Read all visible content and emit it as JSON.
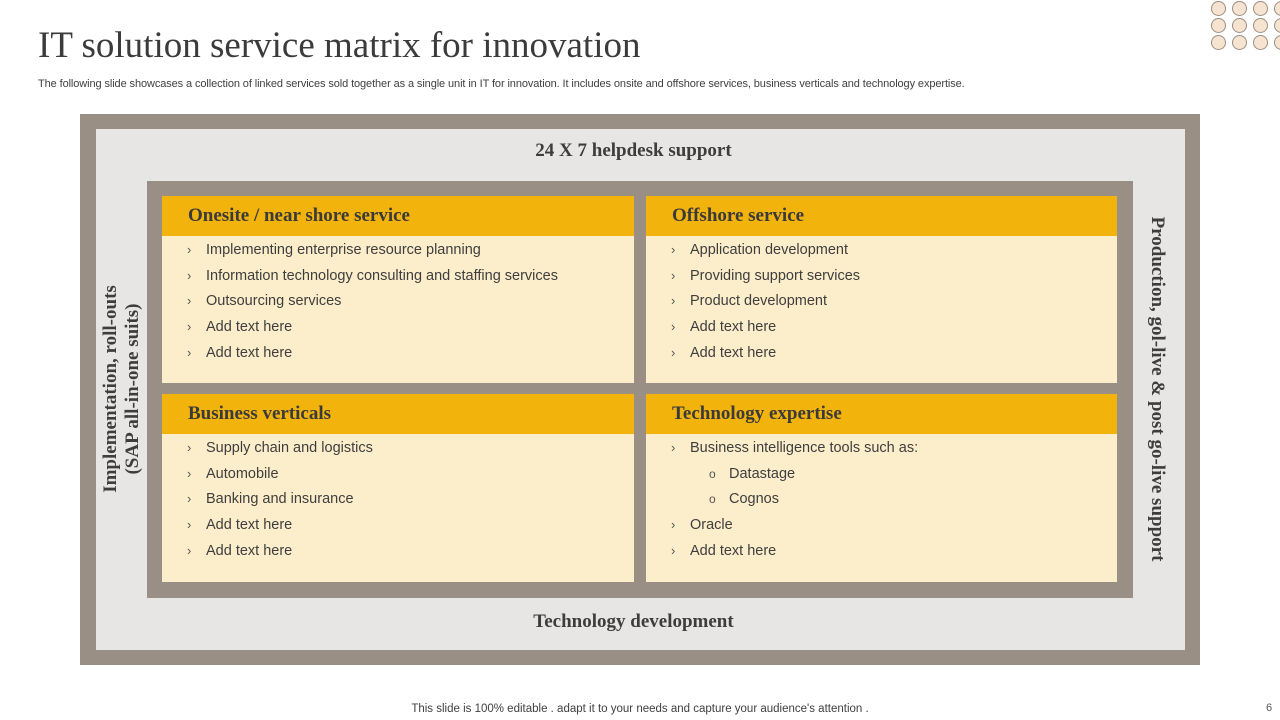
{
  "slide": {
    "title": "IT solution service matrix for innovation",
    "subtitle": "The following slide showcases a collection of linked services sold together as a single unit in IT for innovation. It includes onsite and offshore services, business verticals and technology expertise.",
    "footer": "This slide is 100% editable . adapt it to your needs and capture your audience's attention .",
    "page_number": "6"
  },
  "matrix": {
    "top_label": "24 X 7 helpdesk support",
    "bottom_label": "Technology development",
    "left_label_line1": "Implementation, roll-outs",
    "left_label_line2": "(SAP all-in-one suits)",
    "right_label": "Production, gol-live & post go-live support",
    "quadrants": [
      {
        "title": "Onesite / near shore service",
        "items": [
          "Implementing enterprise resource planning",
          "Information technology consulting and staffing services",
          "Outsourcing services",
          "Add text here",
          "Add text here"
        ]
      },
      {
        "title": "Offshore service",
        "items": [
          "Application development",
          "Providing support services",
          "Product development",
          "Add text here",
          "Add text here"
        ]
      },
      {
        "title": "Business verticals",
        "items": [
          "Supply chain and logistics",
          "Automobile",
          "Banking and insurance",
          "Add text here",
          "Add text here"
        ]
      },
      {
        "title": "Technology expertise",
        "items": [
          "Business intelligence tools such as:",
          "Datastage",
          "Cognos",
          "Oracle",
          "Add text here"
        ]
      }
    ]
  },
  "bullets": {
    "main": "›",
    "sub": "o"
  },
  "colors": {
    "frame": "#9a8f84",
    "frame_inner": "#e8e6e4",
    "header_accent": "#f2b30c",
    "quad_fill": "#fdeecb",
    "dots_fill": "#f6e4d1"
  },
  "icons": {
    "decoration": "dot-grid-decoration"
  }
}
